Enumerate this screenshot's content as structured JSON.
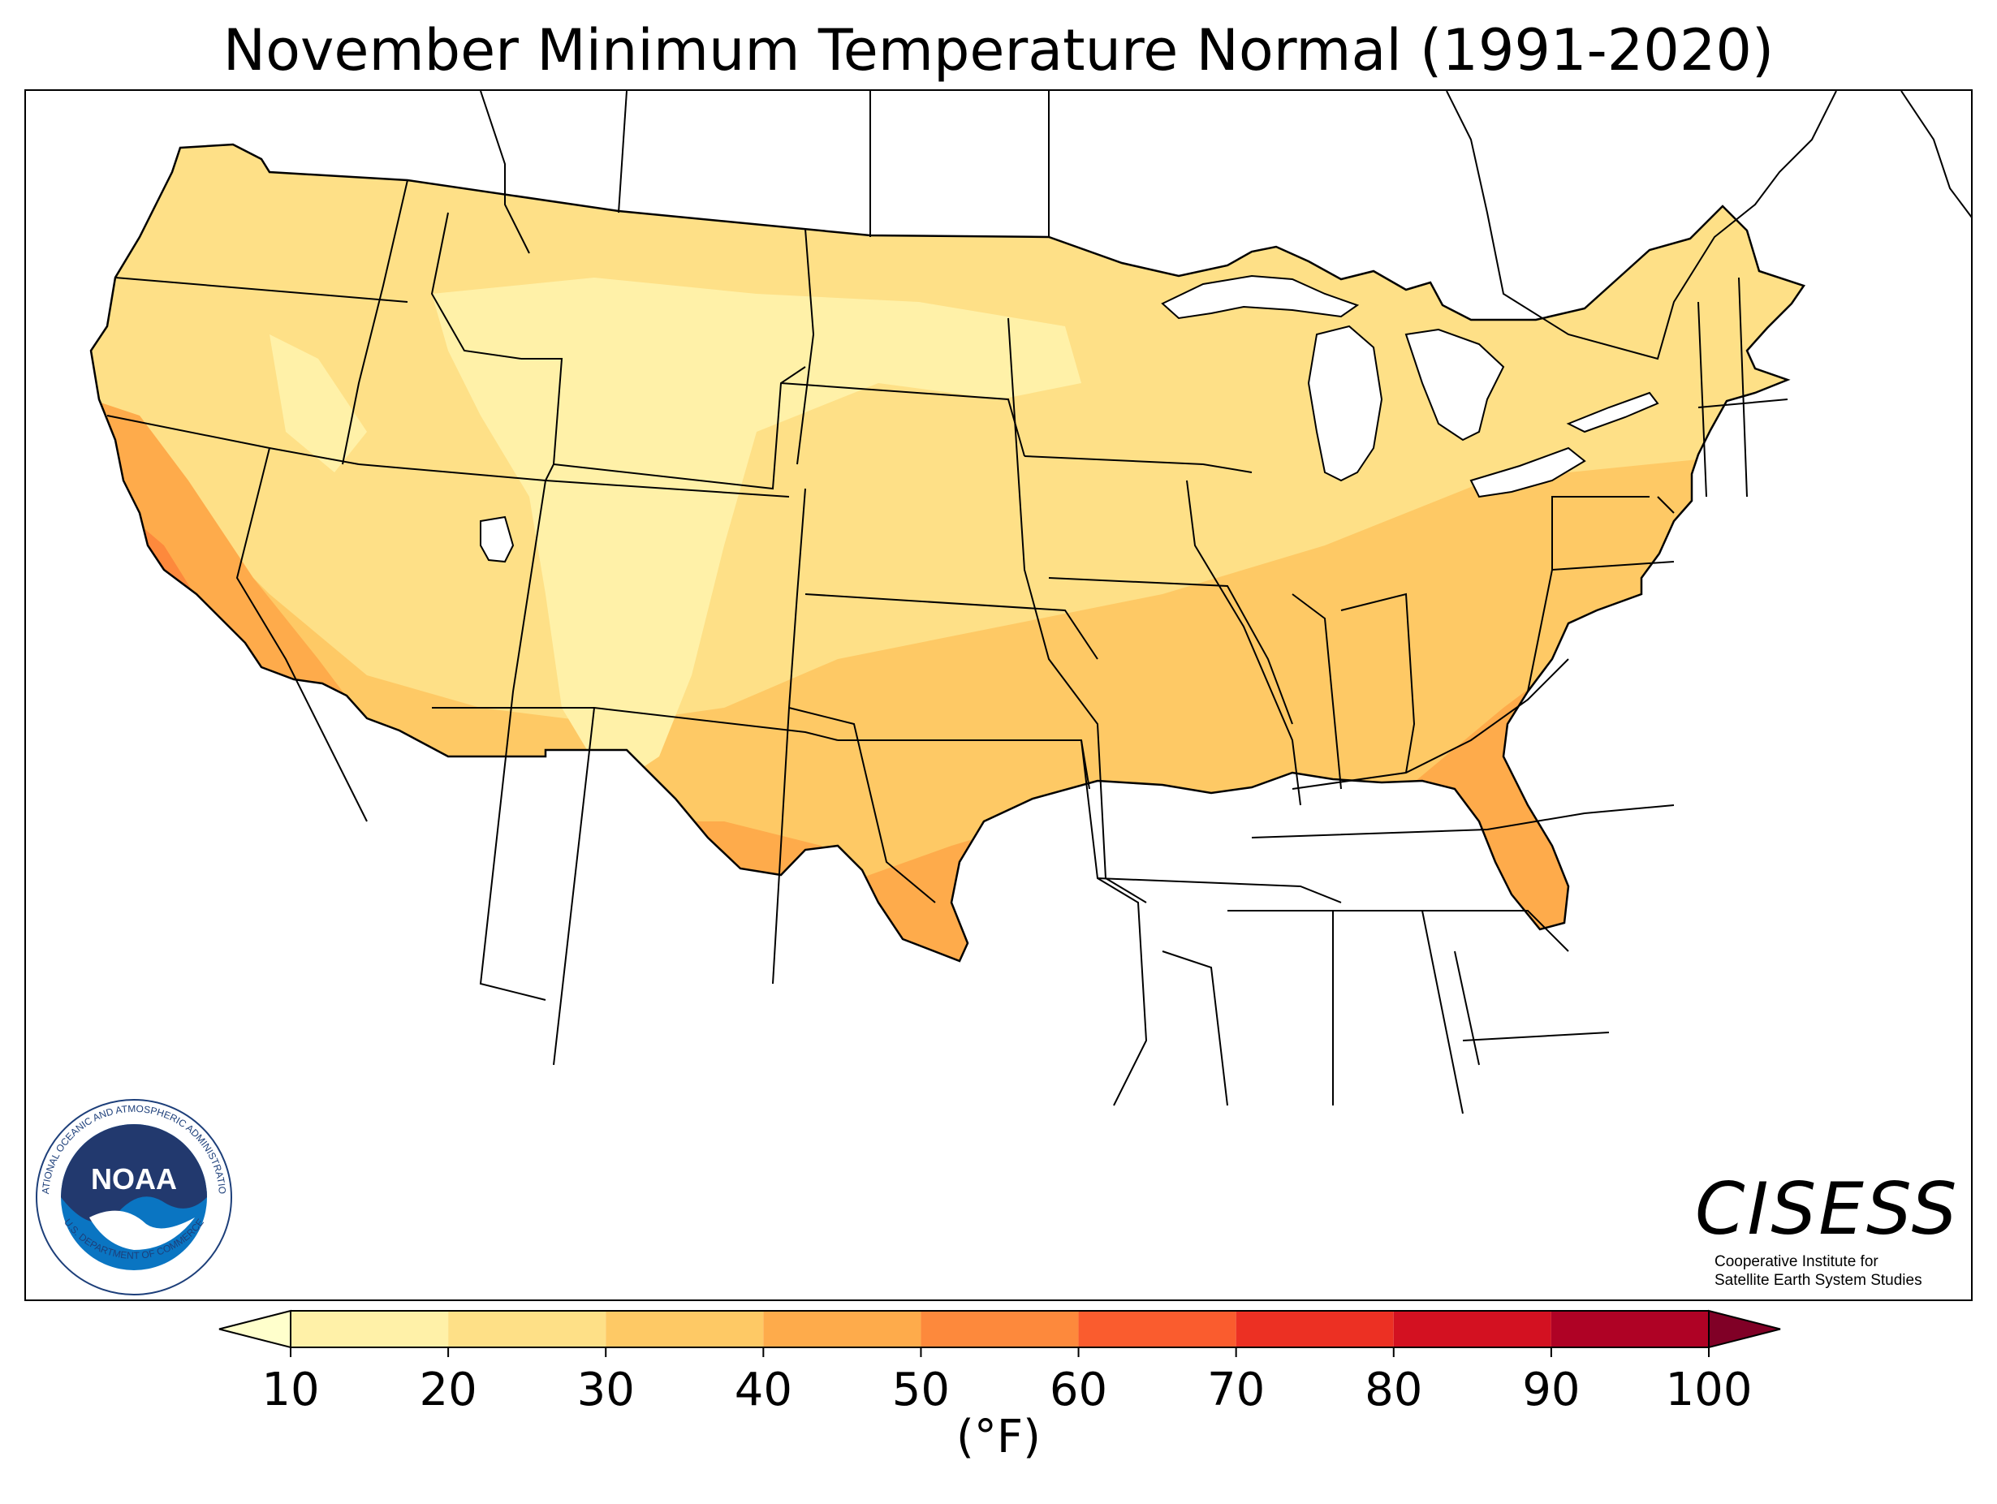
{
  "title": "November Minimum Temperature Normal (1991-2020)",
  "colorbar": {
    "ticks": [
      "10",
      "20",
      "30",
      "40",
      "50",
      "60",
      "70",
      "80",
      "90",
      "100"
    ],
    "unit": "(°F)",
    "bins": [
      {
        "range": [
          10,
          20
        ],
        "color": "#fff1a8"
      },
      {
        "range": [
          20,
          30
        ],
        "color": "#fee087"
      },
      {
        "range": [
          30,
          40
        ],
        "color": "#fec965"
      },
      {
        "range": [
          40,
          50
        ],
        "color": "#feab4b"
      },
      {
        "range": [
          50,
          60
        ],
        "color": "#fd893c"
      },
      {
        "range": [
          60,
          70
        ],
        "color": "#fa5c2e"
      },
      {
        "range": [
          70,
          80
        ],
        "color": "#ec3023"
      },
      {
        "range": [
          80,
          90
        ],
        "color": "#d31121"
      },
      {
        "range": [
          90,
          100
        ],
        "color": "#af0225"
      }
    ],
    "under_color": "#ffffcc",
    "over_color": "#800026"
  },
  "logos": {
    "noaa": {
      "ring_text": "NATIONAL OCEANIC AND ATMOSPHERIC ADMINISTRATION",
      "ring_text_bottom": "U.S. DEPARTMENT OF COMMERCE",
      "center_text": "NOAA"
    },
    "cisess": {
      "name": "CISESS",
      "subtitle_line1": "Cooperative Institute for",
      "subtitle_line2": "Satellite Earth System Studies"
    }
  },
  "map": {
    "region": "Contiguous United States",
    "variable": "November minimum temperature normal",
    "period": "1991-2020",
    "water_color": "#ffffff",
    "border_color": "#000000"
  }
}
